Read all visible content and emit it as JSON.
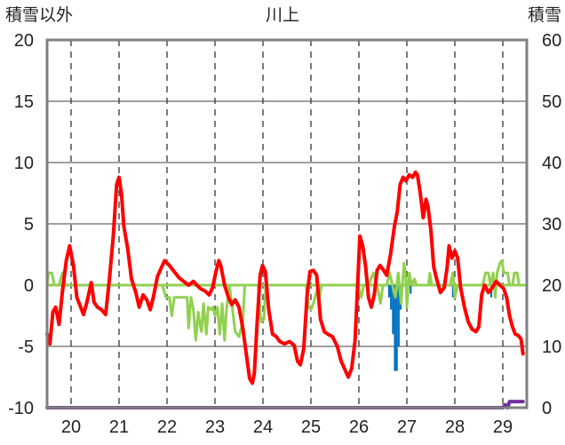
{
  "chart_data": {
    "type": "line",
    "title": "川上",
    "left_axis_label": "積雪以外",
    "right_axis_label": "積雪",
    "left_ylim": [
      -10,
      20
    ],
    "right_ylim": [
      0,
      60
    ],
    "left_ticks": [
      "20",
      "15",
      "10",
      "5",
      "0",
      "-5",
      "-10"
    ],
    "right_ticks": [
      "60",
      "50",
      "40",
      "30",
      "20",
      "10",
      "0"
    ],
    "x_day_range": [
      19.5,
      29.5
    ],
    "x_ticks": [
      "20",
      "21",
      "22",
      "23",
      "24",
      "25",
      "26",
      "27",
      "28",
      "29"
    ],
    "grid": true,
    "colors": {
      "temperature": "#ff0000",
      "green_series": "#92d050",
      "precipitation_bars": "#0070c0",
      "snow_depth": "#7030a0",
      "zero_line": "#92d050"
    },
    "series": [
      {
        "role": "temperature",
        "axis": "left",
        "points": [
          [
            19.5,
            -4.0
          ],
          [
            19.56,
            -4.8
          ],
          [
            19.62,
            -2.2
          ],
          [
            19.68,
            -1.8
          ],
          [
            19.75,
            -3.2
          ],
          [
            19.82,
            -0.5
          ],
          [
            19.9,
            2.0
          ],
          [
            19.97,
            3.2
          ],
          [
            20.05,
            1.6
          ],
          [
            20.12,
            -1.0
          ],
          [
            20.2,
            -1.8
          ],
          [
            20.26,
            -2.4
          ],
          [
            20.33,
            -1.4
          ],
          [
            20.42,
            0.2
          ],
          [
            20.48,
            -1.4
          ],
          [
            20.55,
            -1.8
          ],
          [
            20.63,
            -2.0
          ],
          [
            20.72,
            -2.4
          ],
          [
            20.8,
            0.5
          ],
          [
            20.88,
            4.0
          ],
          [
            20.95,
            8.2
          ],
          [
            21.0,
            8.8
          ],
          [
            21.05,
            7.5
          ],
          [
            21.1,
            4.8
          ],
          [
            21.18,
            3.0
          ],
          [
            21.26,
            0.5
          ],
          [
            21.35,
            -0.6
          ],
          [
            21.42,
            -1.8
          ],
          [
            21.5,
            -0.8
          ],
          [
            21.58,
            -1.2
          ],
          [
            21.65,
            -2.0
          ],
          [
            21.72,
            -0.9
          ],
          [
            21.8,
            0.7
          ],
          [
            21.88,
            1.4
          ],
          [
            21.95,
            2.0
          ],
          [
            22.05,
            1.6
          ],
          [
            22.15,
            1.1
          ],
          [
            22.25,
            0.6
          ],
          [
            22.35,
            0.3
          ],
          [
            22.45,
            0.0
          ],
          [
            22.55,
            0.3
          ],
          [
            22.62,
            0.0
          ],
          [
            22.7,
            -0.3
          ],
          [
            22.8,
            -0.5
          ],
          [
            22.88,
            -0.8
          ],
          [
            22.95,
            -0.2
          ],
          [
            23.02,
            1.1
          ],
          [
            23.08,
            2.0
          ],
          [
            23.12,
            1.6
          ],
          [
            23.2,
            0.0
          ],
          [
            23.28,
            -1.0
          ],
          [
            23.35,
            -1.6
          ],
          [
            23.42,
            -1.2
          ],
          [
            23.5,
            -1.8
          ],
          [
            23.58,
            -3.5
          ],
          [
            23.66,
            -5.8
          ],
          [
            23.72,
            -7.6
          ],
          [
            23.78,
            -8.0
          ],
          [
            23.82,
            -7.2
          ],
          [
            23.88,
            -3.0
          ],
          [
            23.94,
            0.8
          ],
          [
            23.99,
            1.6
          ],
          [
            24.05,
            1.1
          ],
          [
            24.12,
            -2.0
          ],
          [
            24.2,
            -4.0
          ],
          [
            24.28,
            -4.2
          ],
          [
            24.35,
            -4.6
          ],
          [
            24.45,
            -4.8
          ],
          [
            24.55,
            -4.6
          ],
          [
            24.65,
            -4.9
          ],
          [
            24.72,
            -6.2
          ],
          [
            24.78,
            -6.5
          ],
          [
            24.85,
            -5.2
          ],
          [
            24.92,
            -0.8
          ],
          [
            24.98,
            1.1
          ],
          [
            25.05,
            1.2
          ],
          [
            25.12,
            0.8
          ],
          [
            25.2,
            -2.8
          ],
          [
            25.28,
            -3.8
          ],
          [
            25.35,
            -4.0
          ],
          [
            25.45,
            -4.2
          ],
          [
            25.55,
            -5.0
          ],
          [
            25.63,
            -6.2
          ],
          [
            25.72,
            -7.0
          ],
          [
            25.78,
            -7.5
          ],
          [
            25.85,
            -6.8
          ],
          [
            25.92,
            -4.5
          ],
          [
            25.98,
            0.5
          ],
          [
            26.02,
            4.0
          ],
          [
            26.08,
            3.2
          ],
          [
            26.14,
            1.5
          ],
          [
            26.2,
            -1.0
          ],
          [
            26.26,
            -1.8
          ],
          [
            26.32,
            -0.8
          ],
          [
            26.38,
            1.2
          ],
          [
            26.44,
            1.6
          ],
          [
            26.5,
            1.3
          ],
          [
            26.58,
            0.8
          ],
          [
            26.66,
            2.5
          ],
          [
            26.74,
            4.8
          ],
          [
            26.8,
            6.0
          ],
          [
            26.86,
            8.2
          ],
          [
            26.92,
            8.8
          ],
          [
            26.98,
            8.5
          ],
          [
            27.05,
            9.0
          ],
          [
            27.12,
            8.8
          ],
          [
            27.18,
            9.2
          ],
          [
            27.22,
            9.0
          ],
          [
            27.28,
            7.5
          ],
          [
            27.34,
            5.5
          ],
          [
            27.4,
            7.0
          ],
          [
            27.44,
            6.4
          ],
          [
            27.5,
            4.5
          ],
          [
            27.56,
            1.5
          ],
          [
            27.62,
            0.5
          ],
          [
            27.7,
            -0.6
          ],
          [
            27.78,
            -0.2
          ],
          [
            27.84,
            1.5
          ],
          [
            27.88,
            3.2
          ],
          [
            27.94,
            2.2
          ],
          [
            28.0,
            2.8
          ],
          [
            28.06,
            2.2
          ],
          [
            28.12,
            -0.2
          ],
          [
            28.2,
            -1.8
          ],
          [
            28.28,
            -3.0
          ],
          [
            28.36,
            -3.6
          ],
          [
            28.44,
            -3.8
          ],
          [
            28.5,
            -3.4
          ],
          [
            28.56,
            -0.8
          ],
          [
            28.62,
            0.0
          ],
          [
            28.7,
            -0.6
          ],
          [
            28.78,
            -0.2
          ],
          [
            28.86,
            0.3
          ],
          [
            28.94,
            0.0
          ],
          [
            29.02,
            -0.3
          ],
          [
            29.08,
            -1.0
          ],
          [
            29.14,
            -2.5
          ],
          [
            29.2,
            -3.4
          ],
          [
            29.26,
            -4.0
          ],
          [
            29.32,
            -4.1
          ],
          [
            29.38,
            -4.4
          ],
          [
            29.42,
            -5.6
          ]
        ]
      },
      {
        "role": "green_series",
        "axis": "left",
        "points": [
          [
            19.5,
            0.0
          ],
          [
            19.53,
            1.0
          ],
          [
            19.6,
            1.0
          ],
          [
            19.65,
            0.0
          ],
          [
            19.75,
            0.0
          ],
          [
            19.82,
            1.0
          ],
          [
            19.88,
            0.0
          ],
          [
            20.0,
            0.0
          ],
          [
            21.9,
            0.0
          ],
          [
            21.98,
            -1.0
          ],
          [
            22.05,
            -1.0
          ],
          [
            22.1,
            -2.5
          ],
          [
            22.15,
            -1.0
          ],
          [
            22.42,
            -1.0
          ],
          [
            22.45,
            -3.5
          ],
          [
            22.5,
            -1.0
          ],
          [
            22.55,
            -2.0
          ],
          [
            22.6,
            -4.5
          ],
          [
            22.65,
            -2.2
          ],
          [
            22.7,
            -3.5
          ],
          [
            22.72,
            -3.8
          ],
          [
            22.76,
            -1.5
          ],
          [
            22.82,
            -4.0
          ],
          [
            22.86,
            -1.8
          ],
          [
            22.92,
            -2.0
          ],
          [
            22.96,
            -1.8
          ],
          [
            23.0,
            -2.5
          ],
          [
            23.05,
            -1.8
          ],
          [
            23.1,
            -4.0
          ],
          [
            23.15,
            -1.5
          ],
          [
            23.2,
            -4.5
          ],
          [
            23.24,
            -2.0
          ],
          [
            23.3,
            0.0
          ],
          [
            23.36,
            -1.8
          ],
          [
            23.42,
            -3.8
          ],
          [
            23.5,
            -4.2
          ],
          [
            23.58,
            -3.0
          ],
          [
            23.62,
            0.0
          ],
          [
            23.9,
            0.0
          ],
          [
            23.96,
            -3.0
          ],
          [
            24.02,
            -2.8
          ],
          [
            24.06,
            0.0
          ],
          [
            24.9,
            0.0
          ],
          [
            24.95,
            -1.8
          ],
          [
            25.0,
            -2.0
          ],
          [
            25.06,
            -1.4
          ],
          [
            25.12,
            -0.5
          ],
          [
            25.18,
            -1.0
          ],
          [
            25.22,
            0.0
          ],
          [
            25.98,
            0.0
          ],
          [
            26.05,
            -1.0
          ],
          [
            26.1,
            0.0
          ],
          [
            26.2,
            0.0
          ],
          [
            26.3,
            1.0
          ],
          [
            26.38,
            0.0
          ],
          [
            26.45,
            -1.5
          ],
          [
            26.5,
            0.0
          ],
          [
            26.58,
            0.0
          ],
          [
            26.64,
            1.0
          ],
          [
            26.7,
            0.0
          ],
          [
            26.76,
            -1.0
          ],
          [
            26.82,
            1.0
          ],
          [
            26.88,
            -1.5
          ],
          [
            26.94,
            1.8
          ],
          [
            26.98,
            0.5
          ],
          [
            27.0,
            -1.8
          ],
          [
            27.05,
            1.0
          ],
          [
            27.1,
            0.0
          ],
          [
            27.16,
            0.5
          ],
          [
            27.2,
            0.0
          ],
          [
            27.45,
            0.0
          ],
          [
            27.48,
            1.0
          ],
          [
            27.52,
            0.0
          ],
          [
            27.9,
            0.0
          ],
          [
            27.96,
            1.0
          ],
          [
            28.0,
            -1.0
          ],
          [
            28.06,
            0.0
          ],
          [
            28.58,
            0.0
          ],
          [
            28.64,
            1.0
          ],
          [
            28.7,
            1.0
          ],
          [
            28.74,
            0.0
          ],
          [
            28.8,
            1.0
          ],
          [
            28.84,
            -1.0
          ],
          [
            28.88,
            1.0
          ],
          [
            28.94,
            1.8
          ],
          [
            28.98,
            2.0
          ],
          [
            29.02,
            1.0
          ],
          [
            29.1,
            1.0
          ],
          [
            29.14,
            0.0
          ],
          [
            29.2,
            0.0
          ],
          [
            29.24,
            1.0
          ],
          [
            29.3,
            1.0
          ],
          [
            29.34,
            0.0
          ],
          [
            29.42,
            0.0
          ]
        ]
      }
    ],
    "bars": {
      "role": "precipitation",
      "axis": "left",
      "width_days": 0.04,
      "values": [
        [
          26.63,
          -1.0
        ],
        [
          26.67,
          -2.0
        ],
        [
          26.71,
          -4.0
        ],
        [
          26.75,
          -7.0
        ],
        [
          26.79,
          -7.0
        ],
        [
          26.83,
          -5.0
        ],
        [
          26.87,
          -2.0
        ],
        [
          27.08,
          -0.7
        ],
        [
          27.96,
          -1.0
        ],
        [
          28.76,
          -1.0
        ],
        [
          28.84,
          -1.0
        ]
      ]
    },
    "snow_depth": {
      "role": "snow_depth",
      "axis": "right",
      "points": [
        [
          19.5,
          0
        ],
        [
          29.0,
          0
        ],
        [
          29.05,
          0.5
        ],
        [
          29.1,
          0
        ],
        [
          29.14,
          1.0
        ],
        [
          29.2,
          1.0
        ],
        [
          29.42,
          1.0
        ]
      ]
    }
  }
}
